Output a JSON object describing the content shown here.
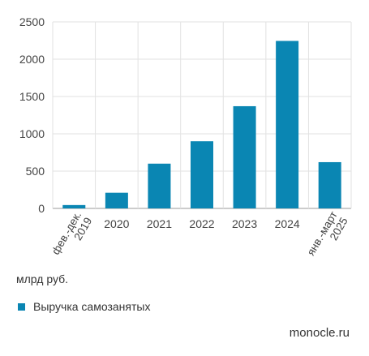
{
  "chart_data": {
    "type": "bar",
    "categories": [
      [
        "фев.-дек.",
        "2019"
      ],
      [
        "2020"
      ],
      [
        "2021"
      ],
      [
        "2022"
      ],
      [
        "2023"
      ],
      [
        "2024"
      ],
      [
        "янв.-март",
        "2025"
      ]
    ],
    "series": [
      {
        "name": "Выручка самозанятых",
        "values": [
          45,
          210,
          600,
          900,
          1370,
          2245,
          620
        ],
        "color": "#0a86b3"
      }
    ],
    "ylim": [
      0,
      2500
    ],
    "yticks": [
      "0",
      "500",
      "1000",
      "1500",
      "2000",
      "2500"
    ],
    "ylabel": "",
    "xlabel": "",
    "grid": true,
    "legend": "bottom-left"
  },
  "unit_label": "млрд руб.",
  "legend_label": "Выручка самозанятых",
  "brand": "monocle.ru"
}
